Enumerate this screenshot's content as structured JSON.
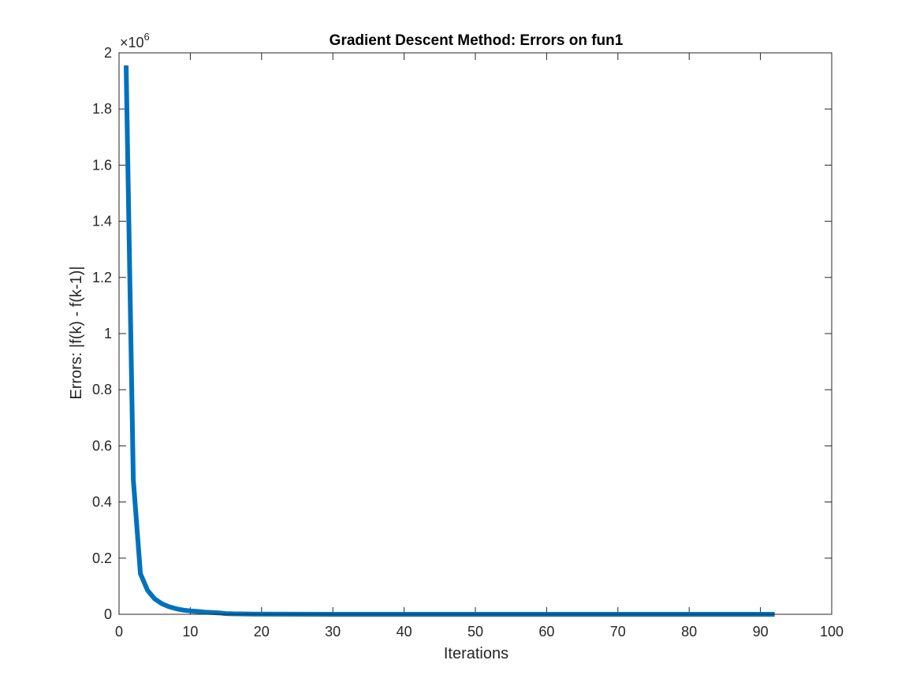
{
  "chart_data": {
    "type": "line",
    "title": "Gradient Descent Method: Errors on fun1",
    "xlabel": "Iterations",
    "ylabel": "Errors: |f(k) - f(k-1)|",
    "y_exponent_label": "×10",
    "y_exponent_power": "6",
    "xlim": [
      0,
      100
    ],
    "ylim": [
      0,
      2000000
    ],
    "x_ticks": [
      0,
      10,
      20,
      30,
      40,
      50,
      60,
      70,
      80,
      90,
      100
    ],
    "x_tick_labels": [
      "0",
      "10",
      "20",
      "30",
      "40",
      "50",
      "60",
      "70",
      "80",
      "90",
      "100"
    ],
    "y_ticks": [
      0,
      200000,
      400000,
      600000,
      800000,
      1000000,
      1200000,
      1400000,
      1600000,
      1800000,
      2000000
    ],
    "y_tick_labels": [
      "0",
      "0.2",
      "0.4",
      "0.6",
      "0.8",
      "1",
      "1.2",
      "1.4",
      "1.6",
      "1.8",
      "2"
    ],
    "grid": false,
    "box": true,
    "line_color": "#0072BD",
    "series": [
      {
        "x": [
          1,
          2,
          3,
          4,
          5,
          6,
          7,
          8,
          9,
          10,
          11,
          12,
          13,
          14,
          15,
          16,
          17,
          18,
          19,
          20,
          25,
          30,
          40,
          50,
          60,
          70,
          80,
          90,
          92
        ],
        "y": [
          1955000,
          480000,
          145000,
          85000,
          55000,
          38000,
          27000,
          20000,
          15000,
          12000,
          10000,
          8000,
          6500,
          5000,
          2500,
          1800,
          1300,
          1000,
          700,
          500,
          200,
          100,
          50,
          20,
          10,
          5,
          2,
          1,
          1
        ]
      }
    ]
  }
}
